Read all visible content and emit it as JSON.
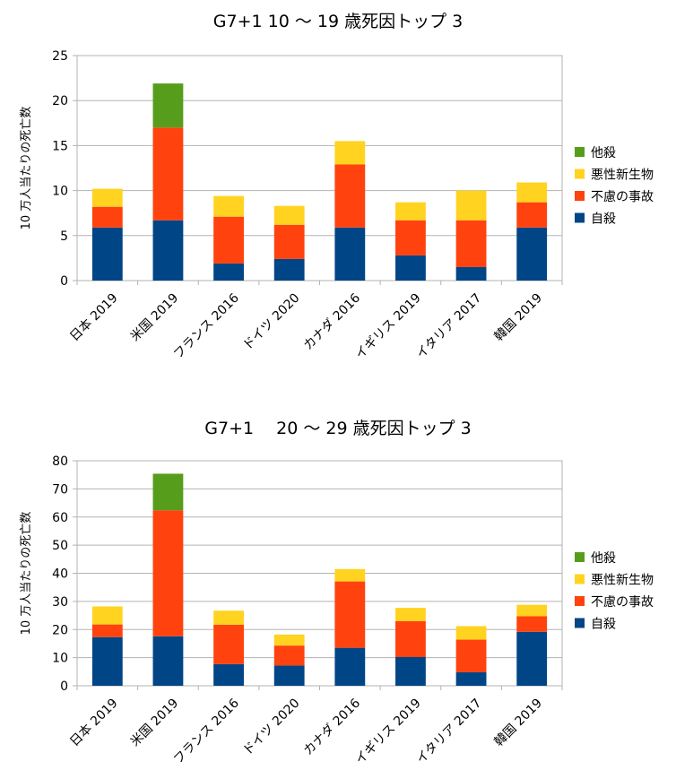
{
  "chart_data": [
    {
      "type": "bar",
      "stacked": true,
      "title": "G7+1 10 ～ 19 歳死因トップ 3",
      "ylabel": "10 万人当たりの死亡数",
      "xlabel": "",
      "ylim": [
        0,
        25
      ],
      "yticks": [
        0,
        5,
        10,
        15,
        20,
        25
      ],
      "grid": true,
      "legend_position": "right",
      "categories": [
        "日本 2019",
        "米国 2019",
        "フランス 2016",
        "ドイツ 2020",
        "カナダ 2016",
        "イギリス 2019",
        "イタリア 2017",
        "韓国 2019"
      ],
      "series": [
        {
          "name": "自殺",
          "color": "#004586",
          "values": [
            5.9,
            6.7,
            1.9,
            2.4,
            5.9,
            2.8,
            1.5,
            5.9
          ]
        },
        {
          "name": "不慮の事故",
          "color": "#ff420e",
          "values": [
            2.3,
            10.3,
            5.2,
            3.8,
            7.0,
            3.9,
            5.2,
            2.8
          ]
        },
        {
          "name": "悪性新生物",
          "color": "#ffd320",
          "values": [
            2.0,
            0.0,
            2.3,
            2.1,
            2.6,
            2.0,
            3.3,
            2.2
          ]
        },
        {
          "name": "他殺",
          "color": "#579d1c",
          "values": [
            0.0,
            4.9,
            0.0,
            0.0,
            0.0,
            0.0,
            0.0,
            0.0
          ]
        }
      ]
    },
    {
      "type": "bar",
      "stacked": true,
      "title": "G7+1　 20 ～ 29 歳死因トップ 3",
      "ylabel": "10 万人当たりの死亡数",
      "xlabel": "",
      "ylim": [
        0,
        80
      ],
      "yticks": [
        0,
        10,
        20,
        30,
        40,
        50,
        60,
        70,
        80
      ],
      "grid": true,
      "legend_position": "right",
      "categories": [
        "日本 2019",
        "米国 2019",
        "フランス 2016",
        "ドイツ 2020",
        "カナダ 2016",
        "イギリス 2019",
        "イタリア 2017",
        "韓国 2019"
      ],
      "series": [
        {
          "name": "自殺",
          "color": "#004586",
          "values": [
            17.3,
            17.6,
            7.7,
            7.2,
            13.5,
            10.2,
            4.8,
            19.2
          ]
        },
        {
          "name": "不慮の事故",
          "color": "#ff420e",
          "values": [
            4.5,
            44.8,
            14.0,
            7.1,
            23.6,
            12.8,
            11.6,
            5.5
          ]
        },
        {
          "name": "悪性新生物",
          "color": "#ffd320",
          "values": [
            6.4,
            0.0,
            5.0,
            3.9,
            4.4,
            4.7,
            4.8,
            4.1
          ]
        },
        {
          "name": "他殺",
          "color": "#579d1c",
          "values": [
            0.0,
            13.0,
            0.0,
            0.0,
            0.0,
            0.0,
            0.0,
            0.0
          ]
        }
      ]
    }
  ]
}
